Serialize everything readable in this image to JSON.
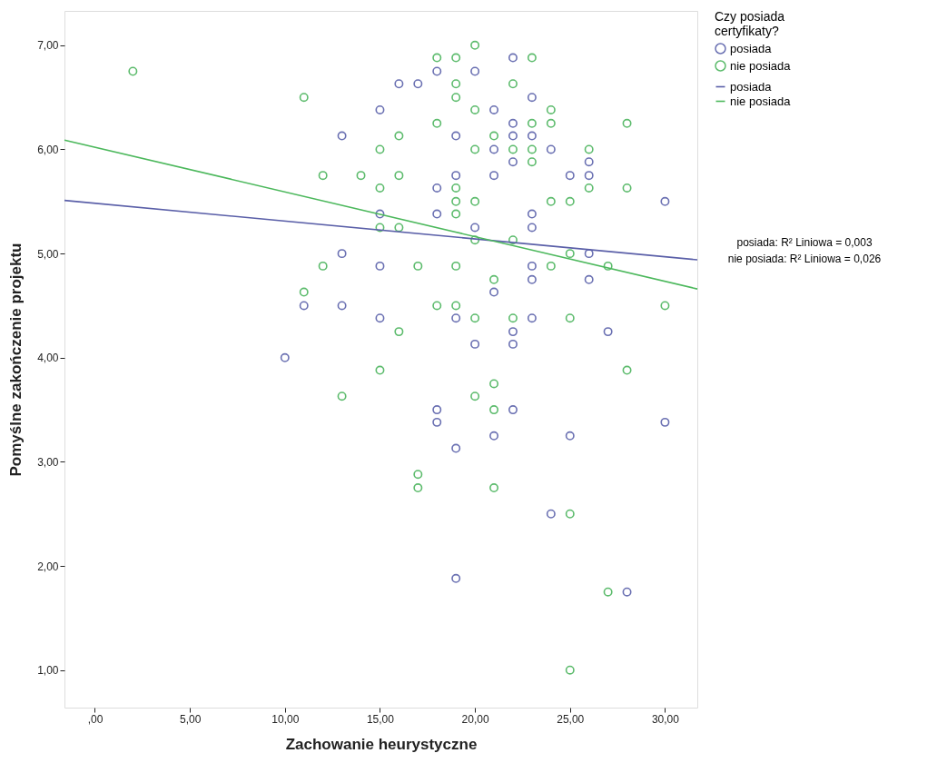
{
  "chart_data": {
    "type": "scatter",
    "xlabel": "Zachowanie heurystyczne",
    "ylabel": "Pomyślne zakończenie projektu",
    "legend_title": "Czy posiada certyfikaty?",
    "xlim": [
      -1.6,
      31.7
    ],
    "ylim": [
      0.64,
      7.33
    ],
    "xticks": [
      {
        "value": 0,
        "label": ",00"
      },
      {
        "value": 5,
        "label": "5,00"
      },
      {
        "value": 10,
        "label": "10,00"
      },
      {
        "value": 15,
        "label": "15,00"
      },
      {
        "value": 20,
        "label": "20,00"
      },
      {
        "value": 25,
        "label": "25,00"
      },
      {
        "value": 30,
        "label": "30,00"
      }
    ],
    "yticks": [
      {
        "value": 1,
        "label": "1,00"
      },
      {
        "value": 2,
        "label": "2,00"
      },
      {
        "value": 3,
        "label": "3,00"
      },
      {
        "value": 4,
        "label": "4,00"
      },
      {
        "value": 5,
        "label": "5,00"
      },
      {
        "value": 6,
        "label": "6,00"
      },
      {
        "value": 7,
        "label": "7,00"
      }
    ],
    "legend": "top right",
    "marker": "circle",
    "annotations": [
      "posiada: R² Liniowa = 0,003",
      "nie posiada: R² Liniowa = 0,026"
    ],
    "series": [
      {
        "name": "posiada",
        "color": "#6a70b2",
        "x": [
          10,
          11,
          13,
          13,
          13,
          15,
          15,
          15,
          15,
          16,
          17,
          18,
          18,
          18,
          18,
          18,
          19,
          19,
          19,
          19,
          19,
          20,
          20,
          20,
          21,
          21,
          21,
          21,
          21,
          22,
          22,
          22,
          22,
          22,
          22,
          22,
          23,
          23,
          23,
          23,
          23,
          23,
          23,
          24,
          24,
          25,
          25,
          26,
          26,
          26,
          26,
          27,
          28,
          30,
          30
        ],
        "values": [
          4.0,
          4.5,
          6.13,
          5.0,
          4.5,
          6.38,
          5.38,
          4.88,
          4.38,
          6.63,
          6.63,
          6.75,
          5.63,
          5.38,
          3.5,
          3.38,
          6.13,
          5.75,
          4.38,
          3.13,
          1.88,
          6.75,
          5.25,
          4.13,
          6.38,
          6.0,
          5.75,
          4.63,
          3.25,
          6.88,
          6.25,
          6.13,
          5.88,
          4.25,
          4.13,
          3.5,
          6.5,
          6.13,
          5.38,
          5.25,
          4.88,
          4.75,
          4.38,
          6.0,
          2.5,
          5.75,
          3.25,
          5.88,
          5.75,
          5.0,
          4.75,
          4.25,
          1.75,
          5.5,
          3.38
        ]
      },
      {
        "name": "nie posiada",
        "color": "#5cbb6c",
        "x": [
          2,
          11,
          11,
          12,
          12,
          13,
          14,
          15,
          15,
          15,
          15,
          16,
          16,
          16,
          16,
          17,
          17,
          17,
          18,
          18,
          18,
          19,
          19,
          19,
          19,
          19,
          19,
          19,
          19,
          20,
          20,
          20,
          20,
          20,
          20,
          20,
          21,
          21,
          21,
          21,
          21,
          22,
          22,
          22,
          22,
          23,
          23,
          23,
          23,
          24,
          24,
          24,
          24,
          25,
          25,
          25,
          25,
          25,
          26,
          26,
          27,
          27,
          28,
          28,
          28,
          30
        ],
        "values": [
          6.75,
          6.5,
          4.63,
          5.75,
          4.88,
          3.63,
          5.75,
          6.0,
          5.63,
          5.25,
          3.88,
          6.13,
          5.75,
          5.25,
          4.25,
          4.88,
          2.88,
          2.75,
          6.88,
          6.25,
          4.5,
          6.88,
          6.63,
          6.5,
          5.63,
          5.5,
          5.38,
          4.88,
          4.5,
          7.0,
          6.38,
          6.0,
          5.5,
          5.13,
          4.38,
          3.63,
          6.13,
          4.75,
          3.75,
          3.5,
          2.75,
          6.63,
          6.0,
          5.13,
          4.38,
          6.88,
          6.25,
          6.0,
          5.88,
          6.38,
          6.25,
          5.5,
          4.88,
          5.5,
          5.0,
          4.38,
          2.5,
          1.0,
          6.0,
          5.63,
          4.88,
          1.75,
          6.25,
          5.63,
          3.88,
          4.5
        ]
      },
      {
        "name": "posiada",
        "type": "line",
        "marker": "none",
        "color": "#5a5fa8",
        "x": [
          -1.6,
          31.7
        ],
        "values": [
          5.51,
          4.94
        ]
      },
      {
        "name": "nie posiada",
        "type": "line",
        "marker": "none",
        "color": "#4cb85c",
        "x": [
          -1.6,
          31.7
        ],
        "values": [
          6.09,
          4.66
        ]
      }
    ]
  }
}
